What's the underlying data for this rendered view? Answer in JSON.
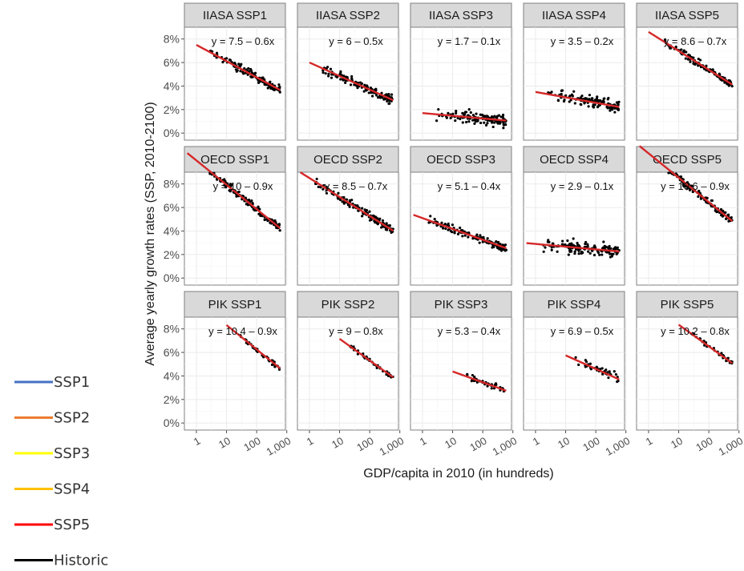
{
  "chart_data": {
    "type": "scatter",
    "layout": "facet-grid",
    "xlabel": "GDP/capita in 2010 (in hundreds)",
    "ylabel": "Average yearly growth rates (SSP, 2010-2100)",
    "x_scale": "log10",
    "x_ticks": [
      "1",
      "10",
      "100",
      "1,000"
    ],
    "x_tick_values": [
      1,
      10,
      100,
      1000
    ],
    "xlim": [
      0.4,
      900
    ],
    "y_ticks": [
      "0%",
      "2%",
      "4%",
      "6%",
      "8%"
    ],
    "y_tick_values": [
      0,
      2,
      4,
      6,
      8
    ],
    "ylim": [
      -0.6,
      9
    ],
    "grid": true,
    "point_color": "#000000",
    "line_color": "#d62728",
    "panels": [
      {
        "label": "IIASA SSP1",
        "eq": "y = 7.5 – 0.6x",
        "intercept": 7.5,
        "slope": 0.6,
        "x_range": [
          1,
          600
        ],
        "n": 130,
        "scatter": 0.35
      },
      {
        "label": "IIASA SSP2",
        "eq": "y = 6 – 0.5x",
        "intercept": 6,
        "slope": 0.5,
        "x_range": [
          1,
          600
        ],
        "n": 130,
        "scatter": 0.4
      },
      {
        "label": "IIASA SSP3",
        "eq": "y = 1.7 – 0.1x",
        "intercept": 1.7,
        "slope": 0.1,
        "x_range": [
          1,
          600
        ],
        "n": 130,
        "scatter": 0.5
      },
      {
        "label": "IIASA SSP4",
        "eq": "y = 3.5 – 0.2x",
        "intercept": 3.5,
        "slope": 0.2,
        "x_range": [
          1,
          600
        ],
        "n": 130,
        "scatter": 0.5
      },
      {
        "label": "IIASA SSP5",
        "eq": "y = 8.6 – 0.7x",
        "intercept": 8.6,
        "slope": 0.7,
        "x_range": [
          1,
          600
        ],
        "n": 130,
        "scatter": 0.3
      },
      {
        "label": "OECD SSP1",
        "eq": "y = 10 – 0.9x",
        "intercept": 10,
        "slope": 0.9,
        "x_range": [
          0.5,
          600
        ],
        "n": 140,
        "scatter": 0.3
      },
      {
        "label": "OECD SSP2",
        "eq": "y = 8.5 – 0.7x",
        "intercept": 8.5,
        "slope": 0.7,
        "x_range": [
          0.5,
          600
        ],
        "n": 140,
        "scatter": 0.35
      },
      {
        "label": "OECD SSP3",
        "eq": "y = 5.1 – 0.4x",
        "intercept": 5.1,
        "slope": 0.4,
        "x_range": [
          0.5,
          600
        ],
        "n": 140,
        "scatter": 0.35
      },
      {
        "label": "OECD SSP4",
        "eq": "y = 2.9 – 0.1x",
        "intercept": 2.9,
        "slope": 0.1,
        "x_range": [
          0.5,
          600
        ],
        "n": 140,
        "scatter": 0.5
      },
      {
        "label": "OECD SSP5",
        "eq": "y = 10.6 – 0.9x",
        "intercept": 10.6,
        "slope": 0.9,
        "x_range": [
          0.5,
          600
        ],
        "n": 140,
        "scatter": 0.3
      },
      {
        "label": "PIK SSP1",
        "eq": "y = 10.4 – 0.9x",
        "intercept": 10.4,
        "slope": 0.9,
        "x_range": [
          10,
          600
        ],
        "n": 40,
        "scatter": 0.2
      },
      {
        "label": "PIK SSP2",
        "eq": "y = 9 – 0.8x",
        "intercept": 9,
        "slope": 0.8,
        "x_range": [
          10,
          600
        ],
        "n": 40,
        "scatter": 0.2
      },
      {
        "label": "PIK SSP3",
        "eq": "y = 5.3 – 0.4x",
        "intercept": 5.3,
        "slope": 0.4,
        "x_range": [
          10,
          600
        ],
        "n": 40,
        "scatter": 0.3
      },
      {
        "label": "PIK SSP4",
        "eq": "y = 6.9 – 0.5x",
        "intercept": 6.9,
        "slope": 0.5,
        "x_range": [
          10,
          600
        ],
        "n": 40,
        "scatter": 0.4
      },
      {
        "label": "PIK SSP5",
        "eq": "y = 10.2 – 0.8x",
        "intercept": 10.2,
        "slope": 0.8,
        "x_range": [
          10,
          600
        ],
        "n": 40,
        "scatter": 0.2
      }
    ]
  },
  "legend": {
    "items": [
      {
        "label": "SSP1",
        "color": "#4472c4"
      },
      {
        "label": "SSP2",
        "color": "#ed7d31"
      },
      {
        "label": "SSP3",
        "color": "#ffff00"
      },
      {
        "label": "SSP4",
        "color": "#ffc000"
      },
      {
        "label": "SSP5",
        "color": "#ff0000"
      },
      {
        "label": "Historic",
        "color": "#000000"
      }
    ]
  }
}
